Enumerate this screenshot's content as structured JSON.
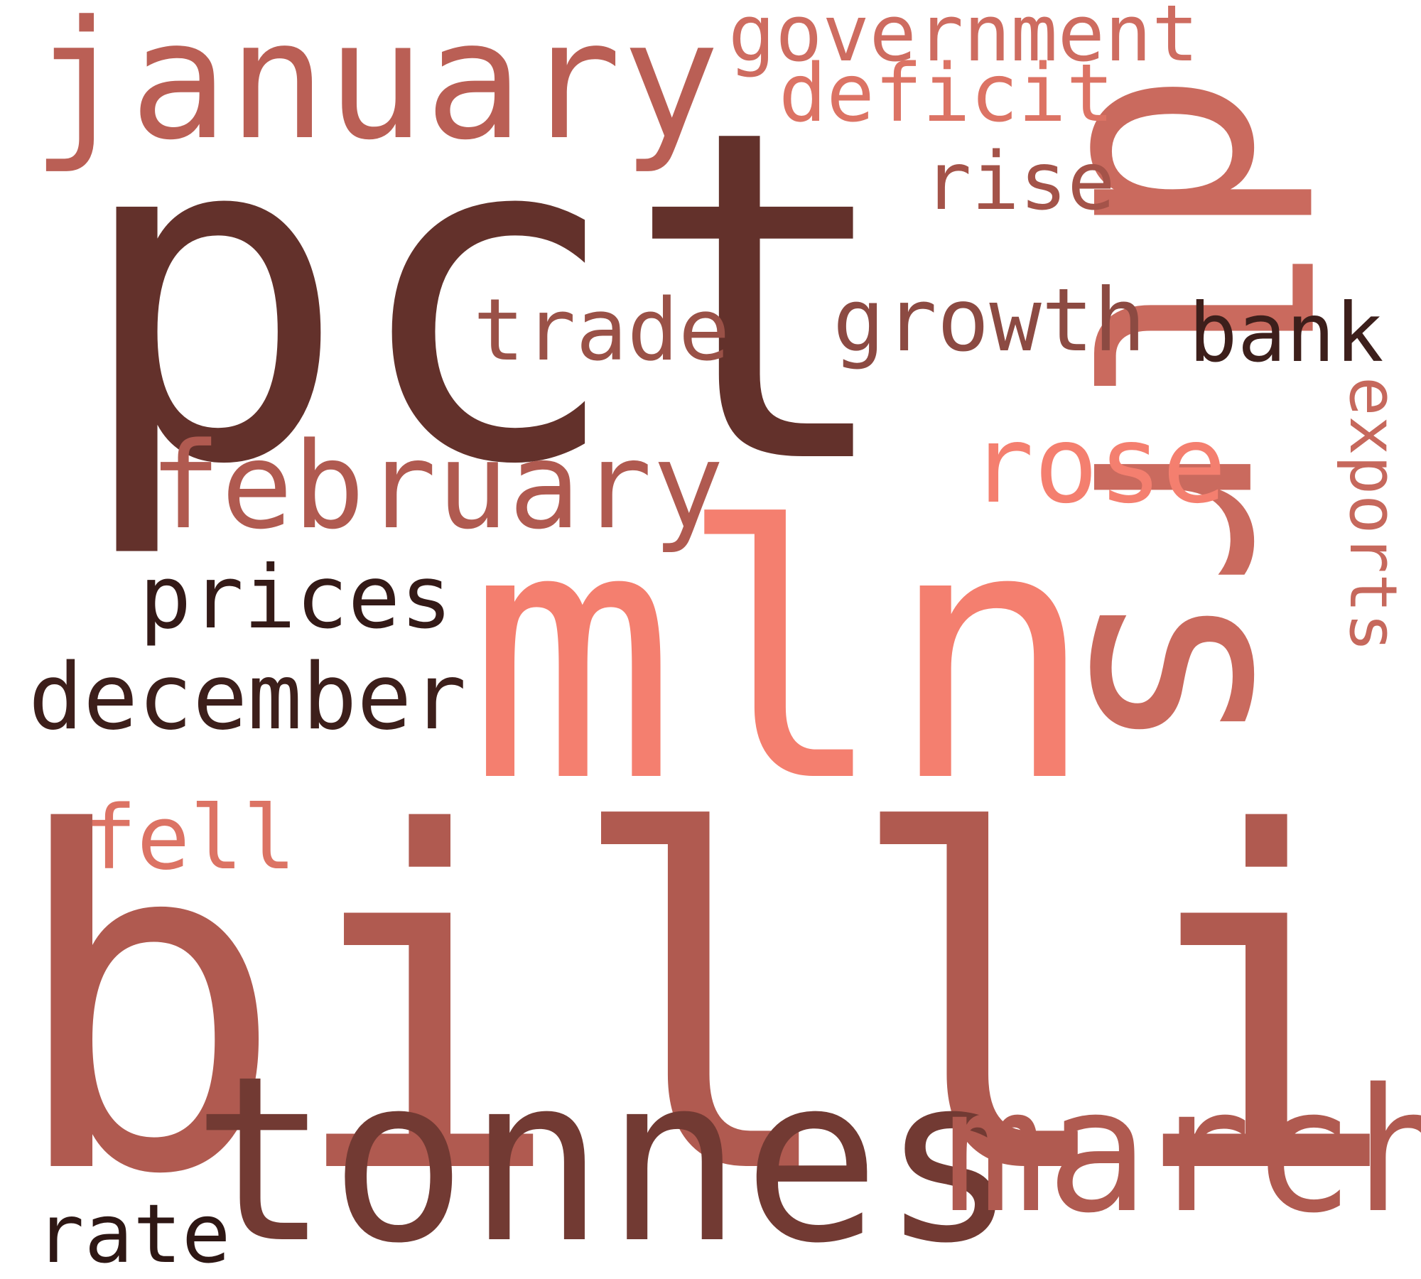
{
  "words": [
    {
      "text": "pct",
      "color": "#63312b"
    },
    {
      "text": "billion",
      "color": "#b05a50"
    },
    {
      "text": "mln",
      "color": "#f47f6f"
    },
    {
      "text": "dlrs",
      "color": "#ca6a5e"
    },
    {
      "text": "tonnes",
      "color": "#723a33"
    },
    {
      "text": "march",
      "color": "#b05a50"
    },
    {
      "text": "january",
      "color": "#ba5f55"
    },
    {
      "text": "february",
      "color": "#b05a50"
    },
    {
      "text": "government",
      "color": "#ce6c60"
    },
    {
      "text": "deficit",
      "color": "#dc7364"
    },
    {
      "text": "rise",
      "color": "#a45349"
    },
    {
      "text": "trade",
      "color": "#9a5147"
    },
    {
      "text": "growth",
      "color": "#8c4a42"
    },
    {
      "text": "bank",
      "color": "#3d1f1b"
    },
    {
      "text": "rose",
      "color": "#f47f6f"
    },
    {
      "text": "exports",
      "color": "#c6685c"
    },
    {
      "text": "prices",
      "color": "#341a17"
    },
    {
      "text": "december",
      "color": "#3d1f1b"
    },
    {
      "text": "fell",
      "color": "#dc7364"
    },
    {
      "text": "rate",
      "color": "#2e1714"
    }
  ]
}
